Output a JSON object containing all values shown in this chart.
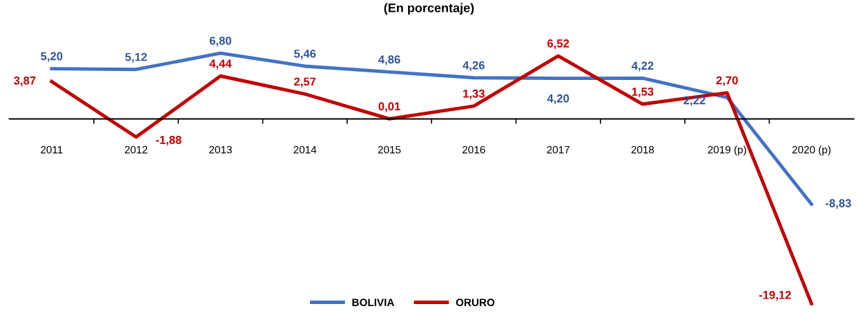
{
  "chart_data": {
    "type": "line",
    "title": "(En porcentaje)",
    "categories": [
      "2011",
      "2012",
      "2013",
      "2014",
      "2015",
      "2016",
      "2017",
      "2018",
      "2019 (p)",
      "2020 (p)"
    ],
    "legend": "bottom",
    "grid": false,
    "marker": "none",
    "line_style": "solid",
    "series": [
      {
        "name": "BOLIVIA",
        "color": "#4472c4",
        "values": [
          5.2,
          5.12,
          6.8,
          5.46,
          4.86,
          4.26,
          4.2,
          4.22,
          2.22,
          -8.83
        ],
        "value_labels": [
          "5,20",
          "5,12",
          "6,80",
          "5,46",
          "4,86",
          "4,26",
          "4,20",
          "4,22",
          "2,22",
          "-8,83"
        ]
      },
      {
        "name": "ORURO",
        "color": "#c00000",
        "values": [
          3.87,
          -1.88,
          4.44,
          2.57,
          0.01,
          1.33,
          6.52,
          1.53,
          2.7,
          -19.12
        ],
        "value_labels": [
          "3,87",
          "-1,88",
          "4,44",
          "2,57",
          "0,01",
          "1,33",
          "6,52",
          "1,53",
          "2,70",
          "-19,12"
        ]
      }
    ]
  }
}
